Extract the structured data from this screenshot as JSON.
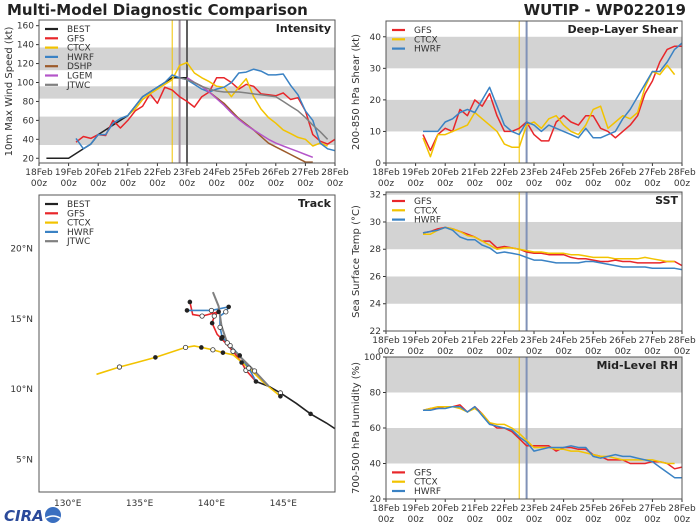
{
  "header": {
    "title": "Multi-Model Diagnostic Comparison",
    "storm": "WUTIP - WP022019"
  },
  "logo": {
    "text": "CIRA"
  },
  "colors": {
    "BEST": "#222222",
    "GFS": "#e8262a",
    "CTCX": "#f2c300",
    "HWRF": "#3a82c4",
    "DSHP": "#9c5a2a",
    "LGEM": "#b455c9",
    "JTWC": "#808080",
    "band": "#d3d3d3"
  },
  "chart_data": [
    {
      "id": "intensity",
      "type": "line",
      "title": "Intensity",
      "ylabel": "10m Max Wind Speed (kt)",
      "xlim": [
        "18Feb00z",
        "28Feb00z"
      ],
      "ylim": [
        15,
        166
      ],
      "x_ticks": [
        "18Feb 00z",
        "19Feb 00z",
        "20Feb 00z",
        "21Feb 00z",
        "22Feb 00z",
        "23Feb 00z",
        "24Feb 00z",
        "25Feb 00z",
        "26Feb 00z",
        "27Feb 00z",
        "28Feb 00z"
      ],
      "y_ticks": [
        20,
        40,
        60,
        80,
        100,
        120,
        140,
        160
      ],
      "bands": [
        [
          34,
          64
        ],
        [
          83,
          96
        ],
        [
          113,
          137
        ]
      ],
      "vlines": [
        {
          "t": "22Feb12z",
          "color": "#f2c300"
        },
        {
          "t": "22Feb18z",
          "color": "#a090a0"
        },
        {
          "t": "23Feb00z",
          "color": "#606060"
        }
      ],
      "legend": "top-left",
      "series": [
        {
          "name": "BEST",
          "start": "18Feb06z",
          "values": [
            20,
            20,
            20,
            20,
            25,
            30,
            35,
            45,
            50,
            55,
            60,
            65,
            75,
            85,
            90,
            95,
            100,
            105,
            105,
            105
          ]
        },
        {
          "name": "GFS",
          "start": "19Feb06z",
          "values": [
            37,
            43,
            41,
            45,
            44,
            60,
            52,
            60,
            70,
            75,
            88,
            78,
            95,
            92,
            85,
            80,
            74,
            85,
            90,
            105,
            105,
            100,
            93,
            98,
            96,
            88,
            87,
            86,
            89,
            82,
            84,
            70,
            45,
            38,
            35,
            40
          ]
        },
        {
          "name": "CTCX",
          "start": "21Feb00z",
          "values": [
            65,
            72,
            82,
            88,
            93,
            98,
            103,
            118,
            121,
            110,
            105,
            101,
            96,
            95,
            85,
            95,
            104,
            85,
            72,
            63,
            57,
            50,
            46,
            42,
            40,
            33,
            36,
            33
          ]
        },
        {
          "name": "HWRF",
          "start": "19Feb06z",
          "values": [
            41,
            30,
            35,
            45,
            45,
            57,
            62,
            65,
            75,
            85,
            90,
            95,
            100,
            108,
            105,
            103,
            98,
            93,
            90,
            93,
            95,
            100,
            110,
            111,
            114,
            112,
            108,
            108,
            109,
            97,
            87,
            70,
            60,
            36,
            30,
            28
          ]
        },
        {
          "name": "DSHP",
          "start": "23Feb00z",
          "values": [
            105,
            100,
            96,
            90,
            84,
            78,
            70,
            62,
            56,
            50,
            43,
            36,
            32,
            28,
            24,
            20,
            16,
            16
          ]
        },
        {
          "name": "LGEM",
          "start": "23Feb00z",
          "values": [
            105,
            100,
            96,
            90,
            83,
            76,
            68,
            61,
            55,
            50,
            45,
            40,
            36,
            33,
            30,
            27,
            24,
            21
          ]
        },
        {
          "name": "JTWC",
          "start": "22Feb18z",
          "values": [
            105,
            103,
            100,
            96,
            93,
            91,
            90,
            90,
            90,
            89,
            88,
            87,
            86,
            85,
            80,
            75,
            70,
            63,
            55,
            48,
            40
          ]
        }
      ]
    },
    {
      "id": "shear",
      "type": "line",
      "title": "Deep-Layer Shear",
      "ylabel": "200-850 hPa Shear (kt)",
      "xlim": [
        "18Feb00z",
        "28Feb00z"
      ],
      "ylim": [
        0,
        45
      ],
      "x_ticks": [
        "18Feb 00z",
        "19Feb 00z",
        "20Feb 00z",
        "21Feb 00z",
        "22Feb 00z",
        "23Feb 00z",
        "24Feb 00z",
        "25Feb 00z",
        "26Feb 00z",
        "27Feb 00z",
        "28Feb 00z"
      ],
      "y_ticks": [
        0,
        10,
        20,
        30,
        40
      ],
      "bands": [
        [
          10,
          20
        ],
        [
          30,
          40
        ]
      ],
      "vlines": [
        {
          "t": "22Feb12z",
          "color": "#f2c300"
        },
        {
          "t": "22Feb18z",
          "color": "#8092b8"
        }
      ],
      "legend": "top-left",
      "series": [
        {
          "name": "GFS",
          "start": "19Feb06z",
          "values": [
            9,
            4,
            9,
            11,
            10,
            17,
            15,
            20,
            18,
            22,
            15,
            10,
            10,
            11,
            13,
            9,
            7,
            7,
            13,
            15,
            13,
            12,
            15,
            15,
            11,
            10,
            8,
            10,
            12,
            15,
            22,
            26,
            32,
            36,
            37,
            37
          ]
        },
        {
          "name": "CTCX",
          "start": "19Feb06z",
          "values": [
            8,
            2,
            9,
            9,
            10,
            11,
            12,
            16,
            14,
            12,
            10,
            6,
            5,
            5,
            12,
            13,
            11,
            14,
            15,
            12,
            10,
            9,
            12,
            17,
            18,
            11,
            13,
            15,
            14,
            16,
            24,
            29,
            28,
            31,
            28
          ]
        },
        {
          "name": "HWRF",
          "start": "19Feb06z",
          "values": [
            10,
            10,
            10,
            13,
            14,
            16,
            17,
            16,
            20,
            24,
            18,
            12,
            10,
            9,
            13,
            12,
            10,
            12,
            11,
            10,
            9,
            8,
            11,
            8,
            8,
            9,
            10,
            14,
            17,
            21,
            25,
            29,
            29,
            32,
            36,
            38
          ]
        }
      ]
    },
    {
      "id": "sst",
      "type": "line",
      "title": "SST",
      "ylabel": "Sea Surface Temp (°C)",
      "xlim": [
        "18Feb00z",
        "28Feb00z"
      ],
      "ylim": [
        22,
        32.2
      ],
      "x_ticks": [
        "18Feb 00z",
        "19Feb 00z",
        "20Feb 00z",
        "21Feb 00z",
        "22Feb 00z",
        "23Feb 00z",
        "24Feb 00z",
        "25Feb 00z",
        "26Feb 00z",
        "27Feb 00z",
        "28Feb 00z"
      ],
      "y_ticks": [
        22,
        24,
        26,
        28,
        30,
        32
      ],
      "bands": [
        [
          24,
          26
        ],
        [
          28,
          30
        ],
        [
          32,
          34
        ]
      ],
      "vlines": [
        {
          "t": "22Feb12z",
          "color": "#f2c300"
        },
        {
          "t": "22Feb18z",
          "color": "#8092b8"
        }
      ],
      "legend": "top-left",
      "series": [
        {
          "name": "GFS",
          "start": "19Feb06z",
          "values": [
            29.2,
            29.3,
            29.5,
            29.6,
            29.5,
            29.3,
            29.1,
            28.9,
            28.6,
            28.6,
            28.1,
            28.2,
            28.1,
            28.0,
            27.8,
            27.7,
            27.7,
            27.6,
            27.6,
            27.6,
            27.4,
            27.3,
            27.3,
            27.2,
            27.1,
            27.1,
            27.2,
            27.1,
            27.1,
            27.0,
            27.0,
            27.0,
            27.0,
            27.1,
            27.1,
            26.8
          ]
        },
        {
          "name": "CTCX",
          "start": "19Feb06z",
          "values": [
            29.1,
            29.1,
            29.4,
            29.6,
            29.5,
            29.3,
            29.0,
            28.9,
            28.6,
            28.3,
            28.0,
            28.1,
            28.1,
            28.0,
            27.9,
            27.8,
            27.8,
            27.7,
            27.7,
            27.7,
            27.6,
            27.6,
            27.5,
            27.4,
            27.4,
            27.4,
            27.3,
            27.3,
            27.3,
            27.3,
            27.4,
            27.3,
            27.2,
            27.1,
            27.1
          ]
        },
        {
          "name": "HWRF",
          "start": "19Feb06z",
          "values": [
            29.2,
            29.3,
            29.4,
            29.6,
            29.4,
            28.9,
            28.7,
            28.7,
            28.3,
            28.1,
            27.7,
            27.8,
            27.7,
            27.6,
            27.4,
            27.2,
            27.2,
            27.1,
            27.0,
            27.0,
            27.0,
            27.0,
            27.1,
            27.1,
            27.0,
            26.9,
            26.8,
            26.7,
            26.7,
            26.7,
            26.7,
            26.6,
            26.6,
            26.6,
            26.6,
            26.5
          ]
        }
      ]
    },
    {
      "id": "rh",
      "type": "line",
      "title": "Mid-Level RH",
      "ylabel": "700-500 hPa Humidity (%)",
      "xlim": [
        "18Feb00z",
        "28Feb00z"
      ],
      "ylim": [
        20,
        100
      ],
      "x_ticks": [
        "18Feb 00z",
        "19Feb 00z",
        "20Feb 00z",
        "21Feb 00z",
        "22Feb 00z",
        "23Feb 00z",
        "24Feb 00z",
        "25Feb 00z",
        "26Feb 00z",
        "27Feb 00z",
        "28Feb 00z"
      ],
      "y_ticks": [
        20,
        40,
        60,
        80,
        100
      ],
      "bands": [
        [
          40,
          60
        ],
        [
          80,
          100
        ]
      ],
      "vlines": [
        {
          "t": "22Feb12z",
          "color": "#f2c300"
        },
        {
          "t": "22Feb18z",
          "color": "#8092b8"
        }
      ],
      "legend": "bottom-left",
      "series": [
        {
          "name": "GFS",
          "start": "19Feb06z",
          "values": [
            70,
            71,
            71,
            72,
            72,
            73,
            69,
            72,
            68,
            63,
            60,
            60,
            58,
            54,
            50,
            50,
            50,
            50,
            47,
            49,
            49,
            48,
            48,
            45,
            44,
            42,
            42,
            42,
            40,
            40,
            40,
            41,
            41,
            40,
            37,
            38
          ]
        },
        {
          "name": "CTCX",
          "start": "19Feb06z",
          "values": [
            70,
            71,
            72,
            72,
            72,
            71,
            69,
            71,
            68,
            63,
            62,
            62,
            60,
            57,
            53,
            49,
            49,
            49,
            48,
            48,
            47,
            47,
            46,
            45,
            44,
            44,
            43,
            42,
            42,
            42,
            42,
            42,
            41,
            40,
            40
          ]
        },
        {
          "name": "HWRF",
          "start": "19Feb06z",
          "values": [
            70,
            70,
            71,
            71,
            72,
            72,
            69,
            72,
            67,
            62,
            61,
            60,
            59,
            55,
            52,
            47,
            48,
            49,
            49,
            49,
            50,
            49,
            49,
            44,
            43,
            44,
            45,
            44,
            44,
            43,
            42,
            41,
            38,
            35,
            32,
            32
          ]
        }
      ]
    },
    {
      "id": "track",
      "type": "line",
      "title": "Track",
      "lon_range": [
        128,
        148.6
      ],
      "lat_range": [
        2.7,
        23.8
      ],
      "lon_ticks": [
        {
          "v": 130,
          "label": "130°E"
        },
        {
          "v": 135,
          "label": "135°E"
        },
        {
          "v": 140,
          "label": "140°E"
        },
        {
          "v": 145,
          "label": "145°E"
        }
      ],
      "lat_ticks": [
        {
          "v": 5,
          "label": "5°N"
        },
        {
          "v": 10,
          "label": "10°N"
        },
        {
          "v": 15,
          "label": "15°N"
        },
        {
          "v": 20,
          "label": "20°N"
        }
      ],
      "legend": "top-left",
      "marker_codes": {
        "0": "none",
        "1": "filled",
        "2": "open"
      },
      "series": [
        {
          "name": "BEST",
          "points": [
            [
              148.9,
              7.0,
              2
            ],
            [
              148.0,
              7.6,
              0
            ],
            [
              146.9,
              8.25,
              1
            ],
            [
              145.9,
              9.0,
              0
            ],
            [
              144.8,
              9.74,
              2
            ],
            [
              144.0,
              10.2,
              0
            ],
            [
              143.1,
              10.55,
              1
            ]
          ]
        },
        {
          "name": "GFS",
          "points": [
            [
              143.1,
              10.55,
              0
            ],
            [
              142.4,
              11.35,
              2
            ],
            [
              142.1,
              11.9,
              1
            ],
            [
              141.5,
              12.7,
              2
            ],
            [
              140.7,
              13.6,
              1
            ],
            [
              140.4,
              13.9,
              0
            ],
            [
              140.05,
              14.7,
              1
            ],
            [
              140.2,
              15.2,
              2
            ],
            [
              140.5,
              15.5,
              1
            ],
            [
              139.35,
              15.2,
              2
            ],
            [
              138.7,
              15.3,
              0
            ],
            [
              138.5,
              16.2,
              1
            ]
          ]
        },
        {
          "name": "CTCX",
          "points": [
            [
              144.8,
              9.5,
              1
            ],
            [
              143.6,
              10.5,
              0
            ],
            [
              142.6,
              11.5,
              0
            ],
            [
              141.5,
              12.45,
              0
            ],
            [
              140.8,
              12.6,
              1
            ],
            [
              140.1,
              12.8,
              2
            ],
            [
              139.3,
              12.97,
              1
            ],
            [
              138.8,
              13.07,
              0
            ],
            [
              138.2,
              12.97,
              2
            ],
            [
              136.1,
              12.26,
              1
            ],
            [
              134.8,
              11.9,
              0
            ],
            [
              133.6,
              11.58,
              2
            ],
            [
              132.0,
              11.06,
              0
            ]
          ]
        },
        {
          "name": "HWRF",
          "points": [
            [
              143.1,
              10.55,
              0
            ],
            [
              142.6,
              11.5,
              2
            ],
            [
              141.97,
              12.4,
              1
            ],
            [
              141.3,
              13.1,
              2
            ],
            [
              140.75,
              13.7,
              1
            ],
            [
              140.6,
              14.4,
              2
            ],
            [
              140.6,
              15.2,
              0
            ],
            [
              141.0,
              15.5,
              2
            ],
            [
              141.2,
              15.85,
              1
            ],
            [
              140.0,
              15.6,
              2
            ],
            [
              138.3,
              15.6,
              1
            ]
          ]
        },
        {
          "name": "JTWC",
          "points": [
            [
              144.0,
              10.2,
              0
            ],
            [
              143.0,
              11.3,
              2
            ],
            [
              142.0,
              12.3,
              0
            ],
            [
              141.1,
              13.3,
              2
            ],
            [
              140.7,
              14.5,
              0
            ],
            [
              140.5,
              15.9,
              0
            ],
            [
              140.1,
              16.9,
              0
            ]
          ]
        }
      ]
    }
  ]
}
